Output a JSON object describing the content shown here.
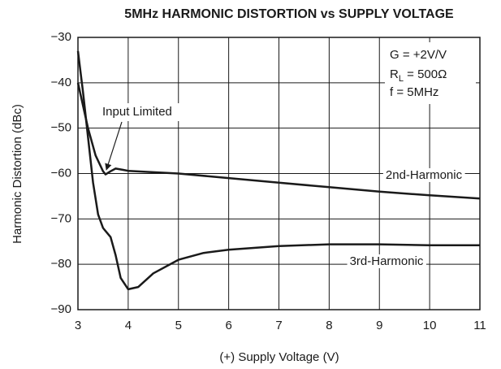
{
  "chart_data": {
    "type": "line",
    "title": "5MHz HARMONIC DISTORTION vs SUPPLY VOLTAGE",
    "xlabel": "(+) Supply Voltage (V)",
    "ylabel": "Harmonic Distortion (dBc)",
    "xlim": [
      3,
      11
    ],
    "ylim": [
      -90,
      -30
    ],
    "xticks": [
      3,
      4,
      5,
      6,
      7,
      8,
      9,
      10,
      11
    ],
    "yticks": [
      {
        "value": -30,
        "label": "−30"
      },
      {
        "value": -40,
        "label": "−40"
      },
      {
        "value": -50,
        "label": "−50"
      },
      {
        "value": -60,
        "label": "−60"
      },
      {
        "value": -70,
        "label": "−70"
      },
      {
        "value": -80,
        "label": "−80"
      },
      {
        "value": -90,
        "label": "−90"
      }
    ],
    "grid": true,
    "annotation": "Input Limited",
    "conditions": [
      "G = +2V/V",
      {
        "text": "R",
        "sub": "L",
        "rest": " = 500Ω"
      },
      "f = 5MHz"
    ],
    "series": [
      {
        "name": "2nd-Harmonic",
        "color": "#1a1a1a",
        "x": [
          3,
          3.1,
          3.2,
          3.35,
          3.5,
          3.55,
          3.65,
          3.75,
          3.9,
          4,
          5,
          6,
          7,
          8,
          9,
          10,
          11
        ],
        "values": [
          -40,
          -45,
          -50,
          -56,
          -59.5,
          -60.2,
          -59.5,
          -58.9,
          -59.2,
          -59.4,
          -60,
          -61,
          -62,
          -63,
          -64,
          -64.8,
          -65.5
        ]
      },
      {
        "name": "3rd-Harmonic",
        "color": "#1a1a1a",
        "x": [
          3,
          3.1,
          3.2,
          3.3,
          3.4,
          3.5,
          3.65,
          3.75,
          3.85,
          4,
          4.2,
          4.5,
          5,
          5.5,
          6,
          7,
          8,
          9,
          10,
          11
        ],
        "values": [
          -33,
          -42,
          -52,
          -62,
          -69,
          -72,
          -74,
          -78,
          -83,
          -85.5,
          -85,
          -82,
          -79,
          -77.5,
          -76.8,
          -76,
          -75.6,
          -75.6,
          -75.8,
          -75.8
        ]
      }
    ]
  }
}
